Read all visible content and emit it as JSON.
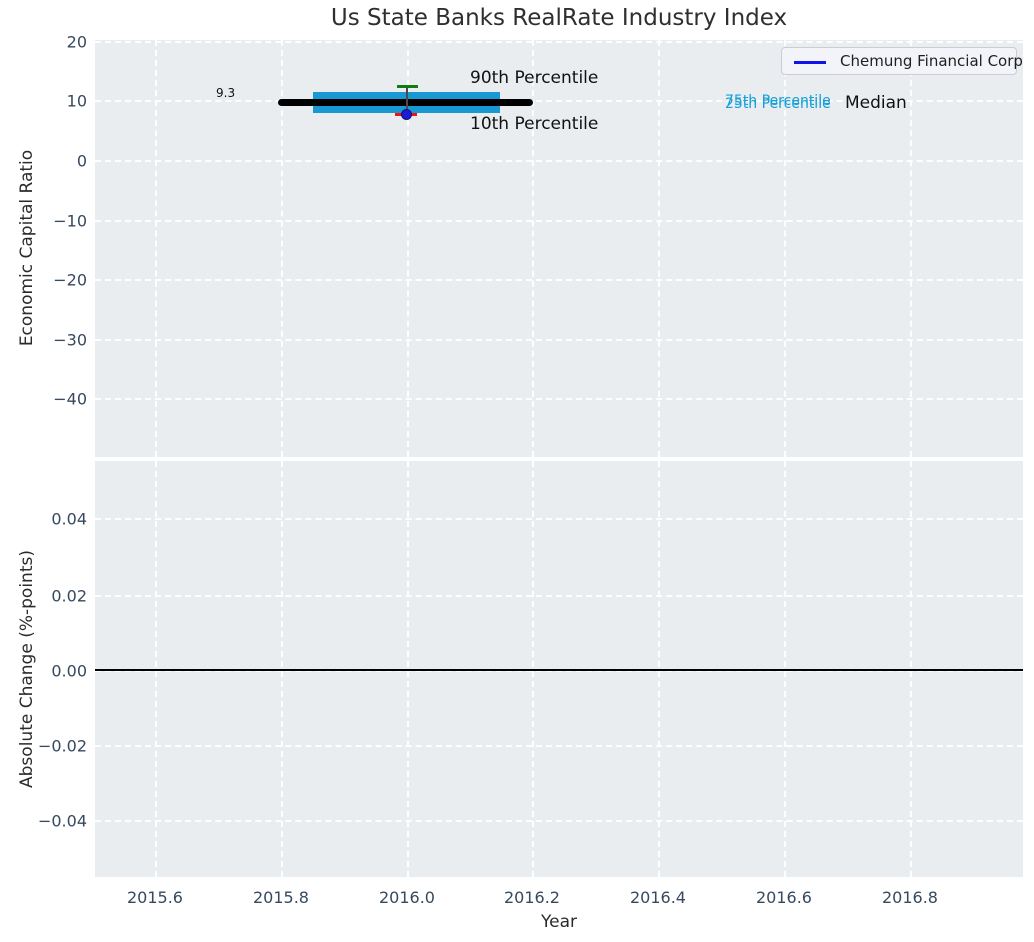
{
  "title": "Us State Banks RealRate Industry Index",
  "legend": {
    "label": "Chemung Financial Corp",
    "line_color": "#1212ea"
  },
  "axes": {
    "top": {
      "ylabel": "Economic Capital Ratio",
      "yticks": [
        "20",
        "10",
        "0",
        "−10",
        "−20",
        "−30",
        "−40"
      ],
      "annotations": {
        "median_value": "9.3",
        "p90": "90th Percentile",
        "p10": "10th Percentile",
        "p75": "75th Percentile",
        "p25": "25th Percentile",
        "median": "Median"
      }
    },
    "bottom": {
      "ylabel": "Absolute Change (%-points)",
      "yticks": [
        "0.04",
        "0.02",
        "0.00",
        "−0.02",
        "−0.04"
      ]
    },
    "xlabel": "Year",
    "xticks": [
      "2015.6",
      "2015.8",
      "2016.0",
      "2016.2",
      "2016.4",
      "2016.6",
      "2016.8"
    ]
  },
  "colors": {
    "plot_background": "#e9edf0",
    "iqr_box": "#1899d3",
    "median_line": "#000000",
    "p90_tick": "#0f7d10",
    "p10_tick": "#f2130c",
    "company_dot": "#1d1bd3",
    "teal_annotation": "#16a0d8",
    "tick_label": "#36495e",
    "legend_line": "#1212ea"
  },
  "chart_data": [
    {
      "type": "box",
      "title": "Us State Banks RealRate Industry Index",
      "ylabel": "Economic Capital Ratio",
      "ylim": [
        -50,
        20.5
      ],
      "xlim": [
        2015.5,
        2017.0
      ],
      "grid": true,
      "x_center": 2016.0,
      "industry_box": {
        "p90": 12.2,
        "p75": 11.4,
        "median": 9.3,
        "p25": 8.0,
        "p10": 7.5,
        "median_line_span_years": [
          2015.8,
          2016.2
        ],
        "box_span_years": [
          2015.85,
          2016.15
        ]
      },
      "series": [
        {
          "name": "Chemung Financial Corp",
          "x": [
            2016.0
          ],
          "values": [
            7.4
          ],
          "marker": "dot",
          "color": "#1d1bd3"
        }
      ],
      "annotations": [
        "9.3",
        "90th Percentile",
        "10th Percentile",
        "75th Percentile",
        "25th Percentile",
        "Median"
      ],
      "legend": {
        "entries": [
          "Chemung Financial Corp"
        ],
        "position": "upper right"
      }
    },
    {
      "type": "line",
      "ylabel": "Absolute Change (%-points)",
      "xlabel": "Year",
      "xticks": [
        2015.6,
        2015.8,
        2016.0,
        2016.2,
        2016.4,
        2016.6,
        2016.8
      ],
      "yticks": [
        0.04,
        0.02,
        0.0,
        -0.02,
        -0.04
      ],
      "ylim": [
        -0.055,
        0.055
      ],
      "zero_line": 0.0,
      "series": [],
      "grid": true
    }
  ]
}
